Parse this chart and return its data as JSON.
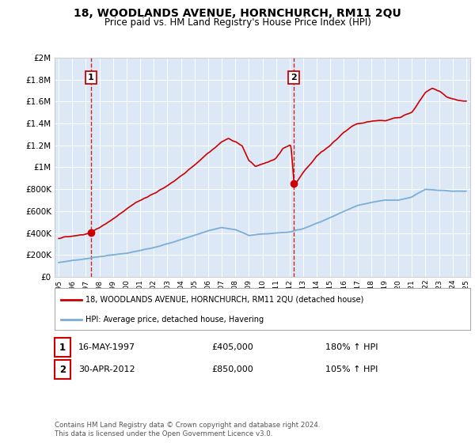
{
  "title": "18, WOODLANDS AVENUE, HORNCHURCH, RM11 2QU",
  "subtitle": "Price paid vs. HM Land Registry's House Price Index (HPI)",
  "ylim": [
    0,
    2000000
  ],
  "yticks": [
    0,
    200000,
    400000,
    600000,
    800000,
    1000000,
    1200000,
    1400000,
    1600000,
    1800000,
    2000000
  ],
  "ytick_labels": [
    "£0",
    "£200K",
    "£400K",
    "£600K",
    "£800K",
    "£1M",
    "£1.2M",
    "£1.4M",
    "£1.6M",
    "£1.8M",
    "£2M"
  ],
  "xlim_start": 1994.7,
  "xlim_end": 2025.3,
  "xtick_positions": [
    1995,
    1996,
    1997,
    1998,
    1999,
    2000,
    2001,
    2002,
    2003,
    2004,
    2005,
    2006,
    2007,
    2008,
    2009,
    2010,
    2011,
    2012,
    2013,
    2014,
    2015,
    2016,
    2017,
    2018,
    2019,
    2020,
    2021,
    2022,
    2023,
    2024,
    2025
  ],
  "xtick_labels": [
    "1995",
    "1996",
    "1997",
    "1998",
    "1999",
    "2000",
    "2001",
    "2002",
    "2003",
    "2004",
    "2005",
    "2006",
    "2007",
    "2008",
    "2009",
    "2010",
    "2011",
    "2012",
    "2013",
    "2014",
    "2015",
    "2016",
    "2017",
    "2018",
    "2019",
    "2020",
    "2021",
    "2022",
    "2023",
    "2024",
    "2025"
  ],
  "sale1_x": 1997.37,
  "sale1_y": 405000,
  "sale1_label": "1",
  "sale2_x": 2012.33,
  "sale2_y": 850000,
  "sale2_label": "2",
  "legend_entry1": "18, WOODLANDS AVENUE, HORNCHURCH, RM11 2QU (detached house)",
  "legend_entry2": "HPI: Average price, detached house, Havering",
  "table_row1": [
    "1",
    "16-MAY-1997",
    "£405,000",
    "180% ↑ HPI"
  ],
  "table_row2": [
    "2",
    "30-APR-2012",
    "£850,000",
    "105% ↑ HPI"
  ],
  "footer": "Contains HM Land Registry data © Crown copyright and database right 2024.\nThis data is licensed under the Open Government Licence v3.0.",
  "price_line_color": "#cc0000",
  "hpi_line_color": "#7aaed6",
  "fig_bg_color": "#ffffff",
  "plot_bg_color": "#dce8f5",
  "grid_color": "#ffffff",
  "dashed_line_color": "#cc0000",
  "title_fontsize": 10,
  "subtitle_fontsize": 8.5
}
